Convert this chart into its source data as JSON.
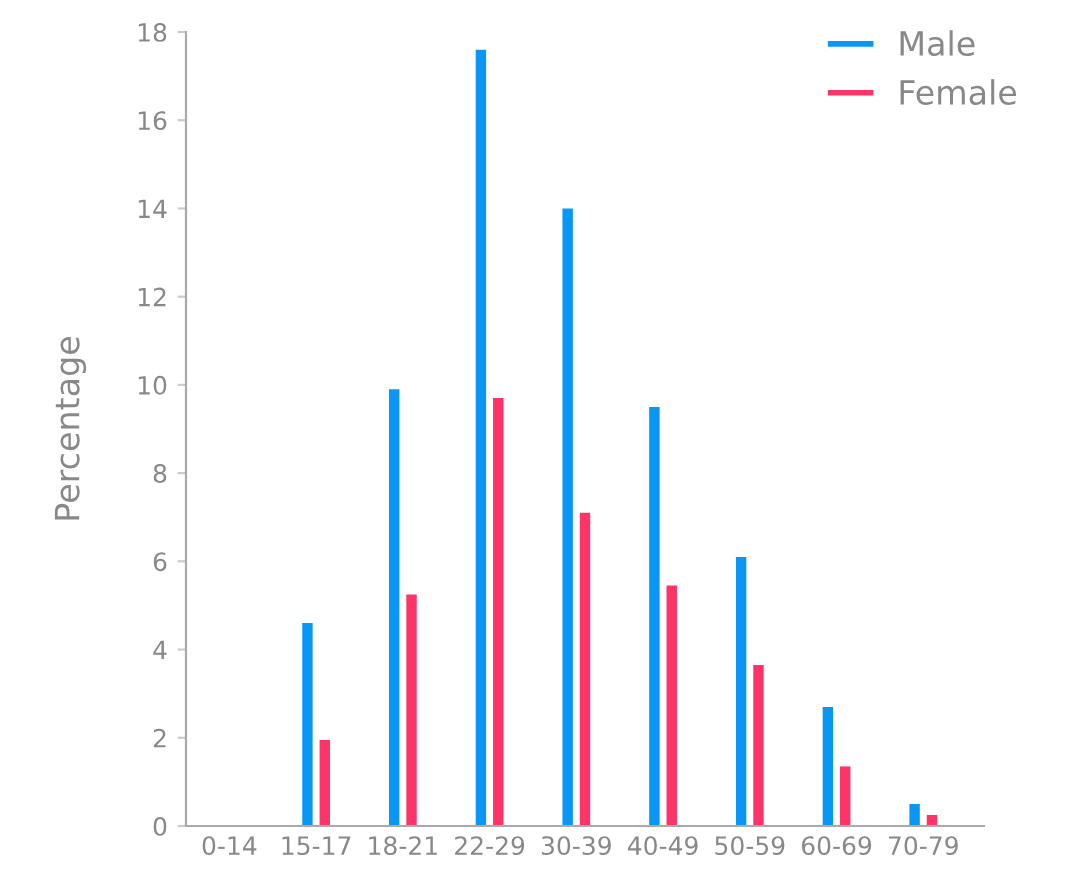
{
  "chart_data": {
    "type": "bar",
    "ylabel": "Percentage",
    "categories": [
      "0-14",
      "15-17",
      "18-21",
      "22-29",
      "30-39",
      "40-49",
      "50-59",
      "60-69",
      "70-79"
    ],
    "series": [
      {
        "name": "Male",
        "color": "#0a96f5",
        "values": [
          0,
          4.6,
          9.9,
          17.6,
          14.0,
          9.5,
          6.1,
          2.7,
          0.5
        ]
      },
      {
        "name": "Female",
        "color": "#fc3468",
        "values": [
          0,
          1.95,
          5.25,
          9.7,
          7.1,
          5.45,
          3.65,
          1.35,
          0.25
        ]
      }
    ],
    "ylim": [
      0,
      18
    ],
    "yticks": [
      0,
      2,
      4,
      6,
      8,
      10,
      12,
      14,
      16,
      18
    ],
    "grid": false,
    "legend": "top right"
  }
}
